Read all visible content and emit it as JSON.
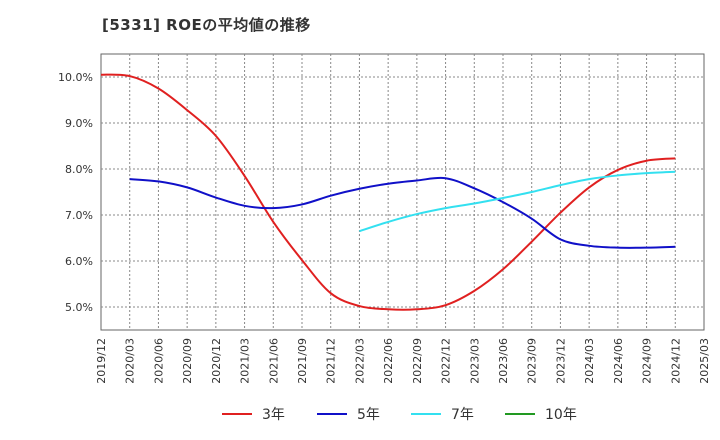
{
  "chart_data": {
    "type": "line",
    "title": "[5331]  ROEの平均値の推移",
    "xlabel": "",
    "ylabel": "",
    "ylim": [
      4.5,
      10.5
    ],
    "yticks": [
      {
        "value": 5,
        "label": "5.0%"
      },
      {
        "value": 6,
        "label": "6.0%"
      },
      {
        "value": 7,
        "label": "7.0%"
      },
      {
        "value": 8,
        "label": "8.0%"
      },
      {
        "value": 9,
        "label": "9.0%"
      },
      {
        "value": 10,
        "label": "10.0%"
      }
    ],
    "categories": [
      "2019/12",
      "2020/03",
      "2020/06",
      "2020/09",
      "2020/12",
      "2021/03",
      "2021/06",
      "2021/09",
      "2021/12",
      "2022/03",
      "2022/06",
      "2022/09",
      "2022/12",
      "2023/03",
      "2023/06",
      "2023/09",
      "2023/12",
      "2024/03",
      "2024/06",
      "2024/09",
      "2024/12",
      "2025/03"
    ],
    "series": [
      {
        "name": "3年",
        "color": "#e02020",
        "values": [
          10.05,
          10.02,
          9.75,
          9.28,
          8.72,
          7.85,
          6.85,
          6.02,
          5.3,
          5.02,
          4.95,
          4.95,
          5.04,
          5.35,
          5.82,
          6.42,
          7.05,
          7.6,
          7.98,
          8.18,
          8.23,
          null
        ]
      },
      {
        "name": "5年",
        "color": "#1010c8",
        "values": [
          null,
          7.78,
          7.73,
          7.6,
          7.38,
          7.2,
          7.15,
          7.23,
          7.42,
          7.57,
          7.68,
          7.75,
          7.8,
          7.58,
          7.28,
          6.92,
          6.47,
          6.33,
          6.29,
          6.29,
          6.31,
          null
        ]
      },
      {
        "name": "7年",
        "color": "#33e0f0",
        "values": [
          null,
          null,
          null,
          null,
          null,
          null,
          null,
          null,
          null,
          6.65,
          6.85,
          7.02,
          7.15,
          7.25,
          7.37,
          7.5,
          7.65,
          7.78,
          7.86,
          7.91,
          7.94,
          null
        ]
      },
      {
        "name": "10年",
        "color": "#229922",
        "values": [
          null,
          null,
          null,
          null,
          null,
          null,
          null,
          null,
          null,
          null,
          null,
          null,
          null,
          null,
          null,
          null,
          null,
          null,
          null,
          null,
          null,
          null
        ]
      }
    ]
  }
}
